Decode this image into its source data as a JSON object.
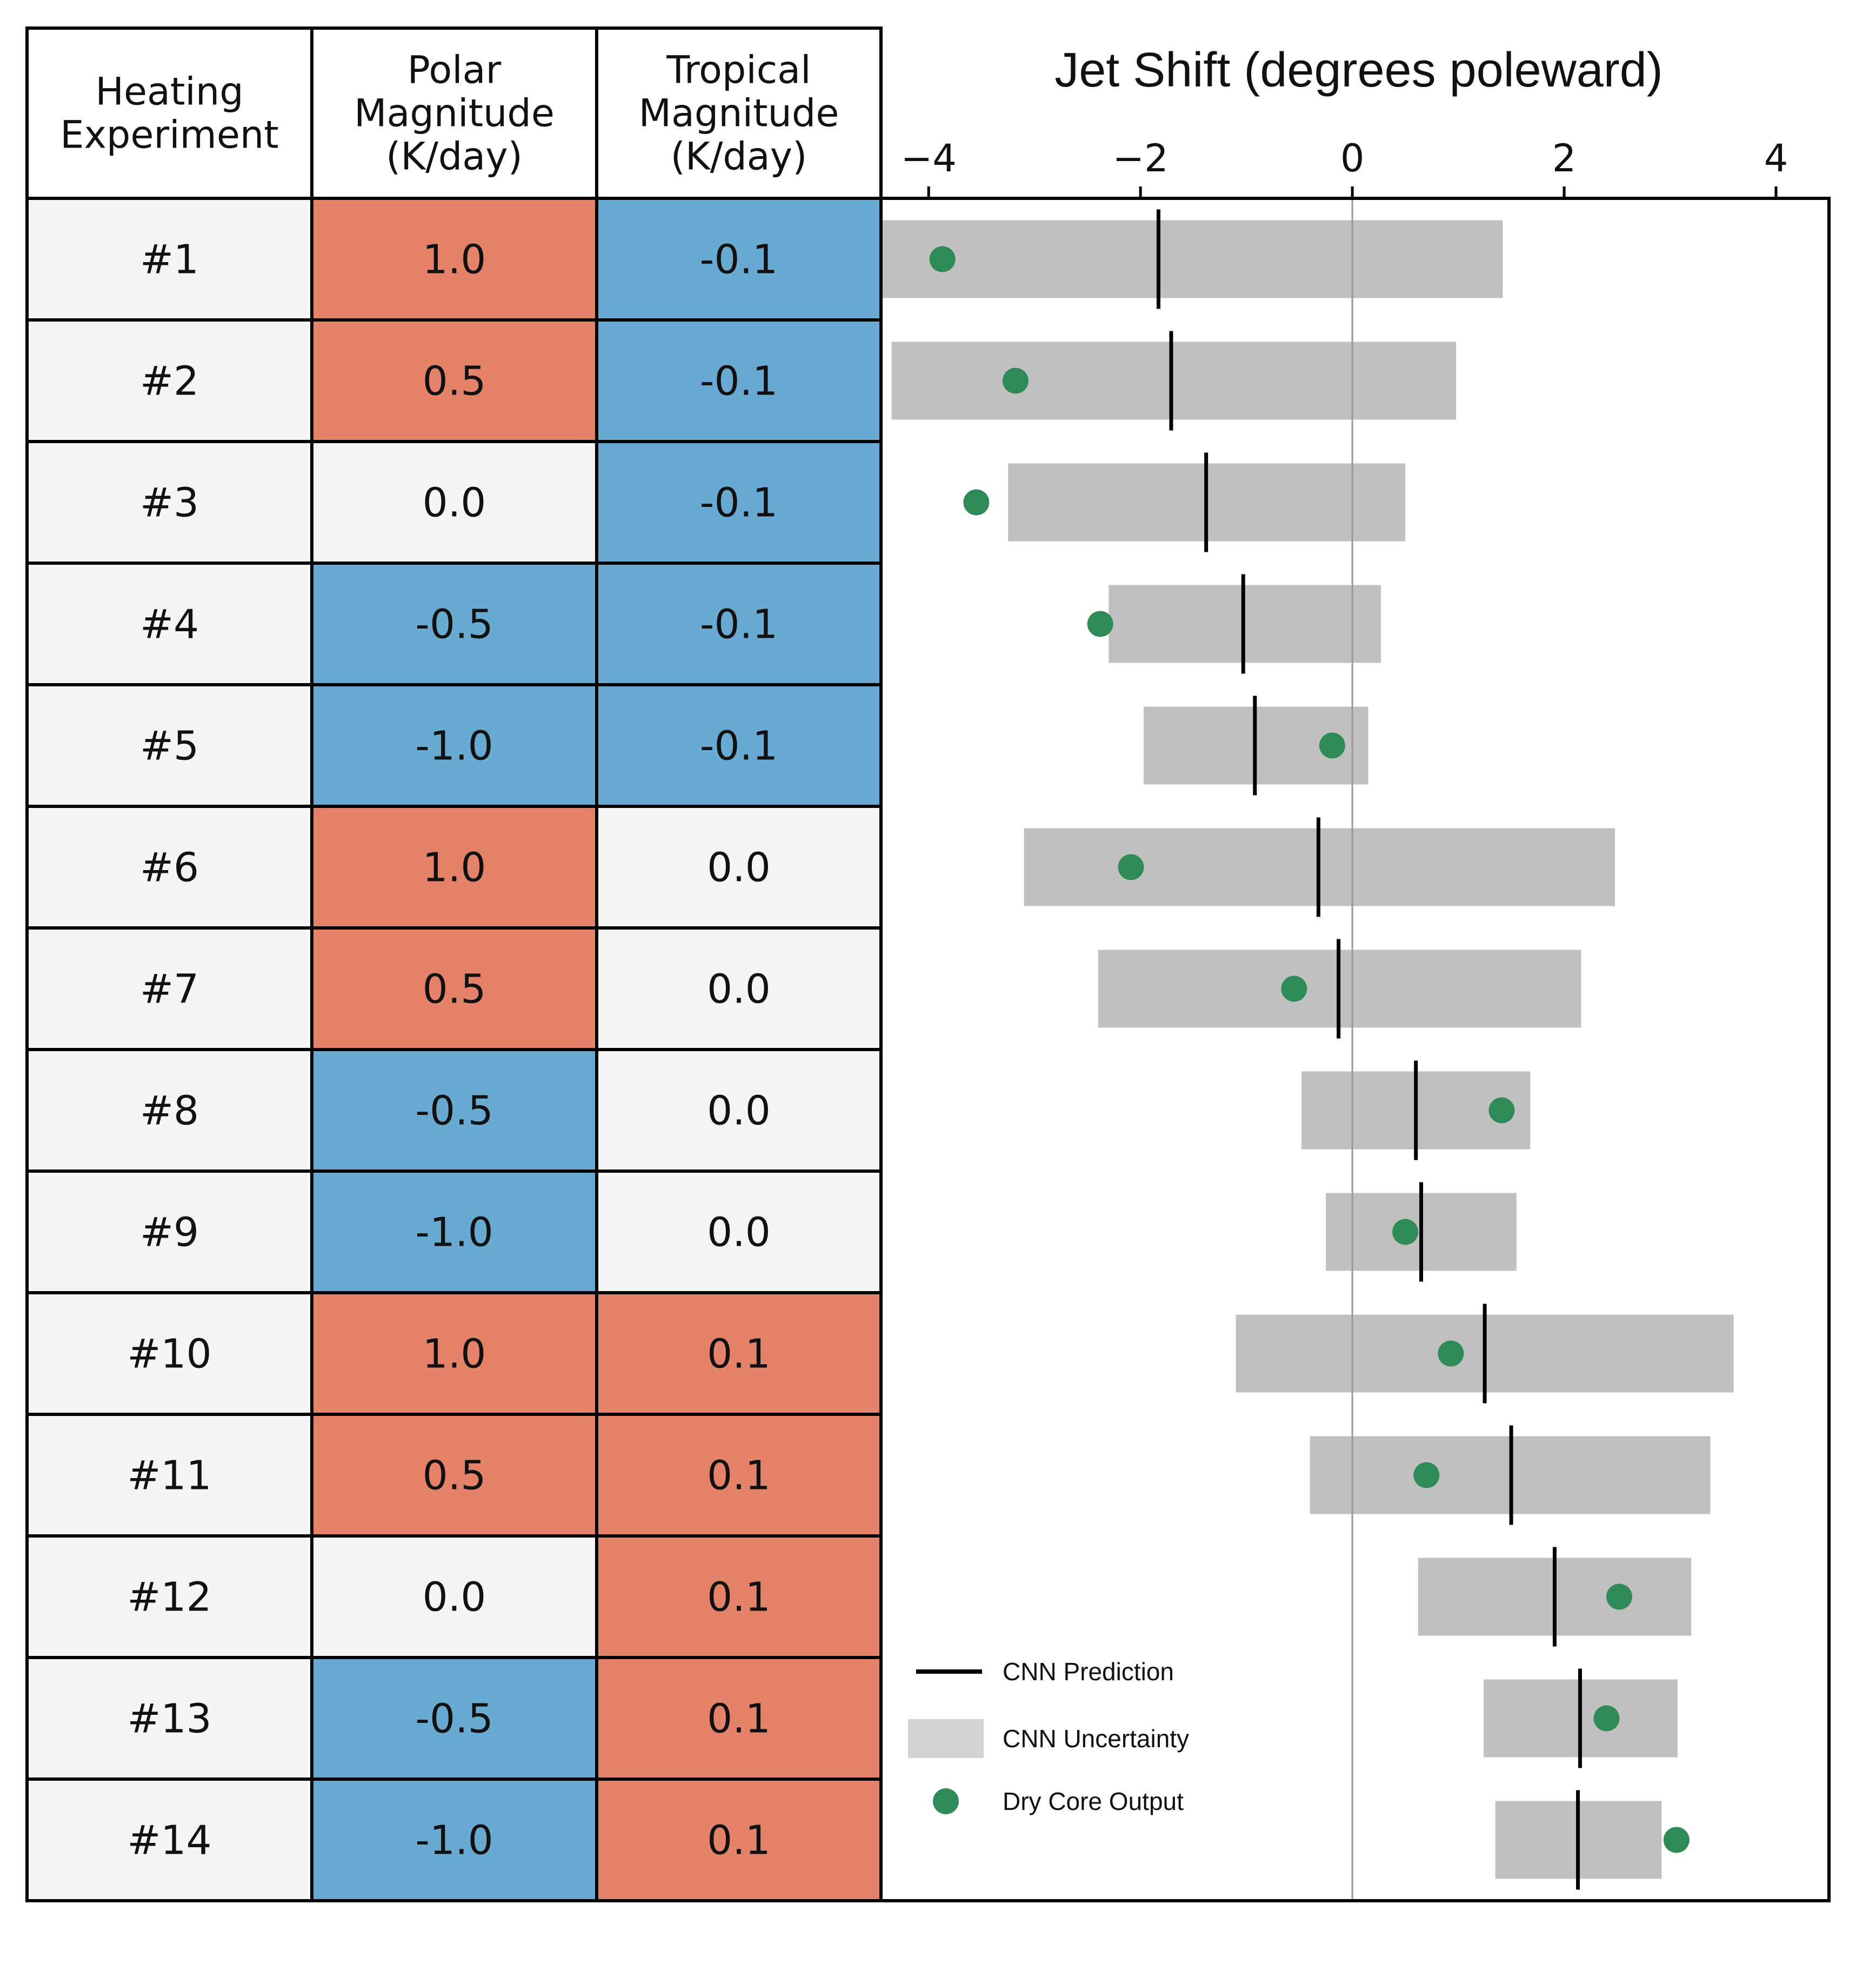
{
  "colors": {
    "warm": "#e5836a",
    "cool": "#68aad2",
    "neutral": "#f5f5f5",
    "uncertainty": "#c0c0c0",
    "legend_uncertainty": "#d3d3d3",
    "prediction": "#000000",
    "dry_core": "#2e8b57",
    "zero_line": "#999999"
  },
  "table": {
    "headers": [
      "Heating\nExperiment",
      "Polar\nMagnitude\n(K/day)",
      "Tropical\nMagnitude\n(K/day)"
    ],
    "rows": [
      {
        "experiment": "#1",
        "polar": "1.0",
        "tropical": "-0.1",
        "polar_color": "warm",
        "tropical_color": "cool"
      },
      {
        "experiment": "#2",
        "polar": "0.5",
        "tropical": "-0.1",
        "polar_color": "warm",
        "tropical_color": "cool"
      },
      {
        "experiment": "#3",
        "polar": "0.0",
        "tropical": "-0.1",
        "polar_color": "neutral",
        "tropical_color": "cool"
      },
      {
        "experiment": "#4",
        "polar": "-0.5",
        "tropical": "-0.1",
        "polar_color": "cool",
        "tropical_color": "cool"
      },
      {
        "experiment": "#5",
        "polar": "-1.0",
        "tropical": "-0.1",
        "polar_color": "cool",
        "tropical_color": "cool"
      },
      {
        "experiment": "#6",
        "polar": "1.0",
        "tropical": "0.0",
        "polar_color": "warm",
        "tropical_color": "neutral"
      },
      {
        "experiment": "#7",
        "polar": "0.5",
        "tropical": "0.0",
        "polar_color": "warm",
        "tropical_color": "neutral"
      },
      {
        "experiment": "#8",
        "polar": "-0.5",
        "tropical": "0.0",
        "polar_color": "cool",
        "tropical_color": "neutral"
      },
      {
        "experiment": "#9",
        "polar": "-1.0",
        "tropical": "0.0",
        "polar_color": "cool",
        "tropical_color": "neutral"
      },
      {
        "experiment": "#10",
        "polar": "1.0",
        "tropical": "0.1",
        "polar_color": "warm",
        "tropical_color": "warm"
      },
      {
        "experiment": "#11",
        "polar": "0.5",
        "tropical": "0.1",
        "polar_color": "warm",
        "tropical_color": "warm"
      },
      {
        "experiment": "#12",
        "polar": "0.0",
        "tropical": "0.1",
        "polar_color": "neutral",
        "tropical_color": "warm"
      },
      {
        "experiment": "#13",
        "polar": "-0.5",
        "tropical": "0.1",
        "polar_color": "cool",
        "tropical_color": "warm"
      },
      {
        "experiment": "#14",
        "polar": "-1.0",
        "tropical": "0.1",
        "polar_color": "cool",
        "tropical_color": "warm"
      }
    ]
  },
  "chart_data": {
    "type": "bar",
    "title": "Jet Shift (degrees poleward)",
    "xlim": [
      -4.45,
      4.5
    ],
    "xticks": [
      -4,
      -2,
      0,
      2,
      4
    ],
    "xtick_labels": [
      "−4",
      "−2",
      "0",
      "2",
      "4"
    ],
    "categories": [
      "#1",
      "#2",
      "#3",
      "#4",
      "#5",
      "#6",
      "#7",
      "#8",
      "#9",
      "#10",
      "#11",
      "#12",
      "#13",
      "#14"
    ],
    "series": [
      {
        "name": "CNN Uncertainty",
        "kind": "range",
        "low": [
          -4.45,
          -4.35,
          -3.25,
          -2.3,
          -1.97,
          -3.1,
          -2.4,
          -0.48,
          -0.25,
          -1.1,
          -0.4,
          0.62,
          1.24,
          1.35
        ],
        "high": [
          1.42,
          0.98,
          0.5,
          0.27,
          0.15,
          2.48,
          2.16,
          1.68,
          1.55,
          3.6,
          3.38,
          3.2,
          3.07,
          2.92
        ]
      },
      {
        "name": "CNN Prediction",
        "kind": "marker-line",
        "values": [
          -1.83,
          -1.71,
          -1.38,
          -1.03,
          -0.92,
          -0.32,
          -0.13,
          0.6,
          0.65,
          1.25,
          1.5,
          1.91,
          2.15,
          2.13
        ]
      },
      {
        "name": "Dry Core Output",
        "kind": "point",
        "values": [
          -3.87,
          -3.18,
          -3.55,
          -2.38,
          -0.19,
          -2.09,
          -0.55,
          1.41,
          0.5,
          0.93,
          0.7,
          2.52,
          2.4,
          3.06
        ]
      }
    ],
    "legend": {
      "position": "lower-left",
      "items": [
        {
          "label": "CNN Prediction",
          "symbol": "line"
        },
        {
          "label": "CNN Uncertainty",
          "symbol": "box"
        },
        {
          "label": "Dry Core Output",
          "symbol": "dot"
        }
      ]
    }
  }
}
